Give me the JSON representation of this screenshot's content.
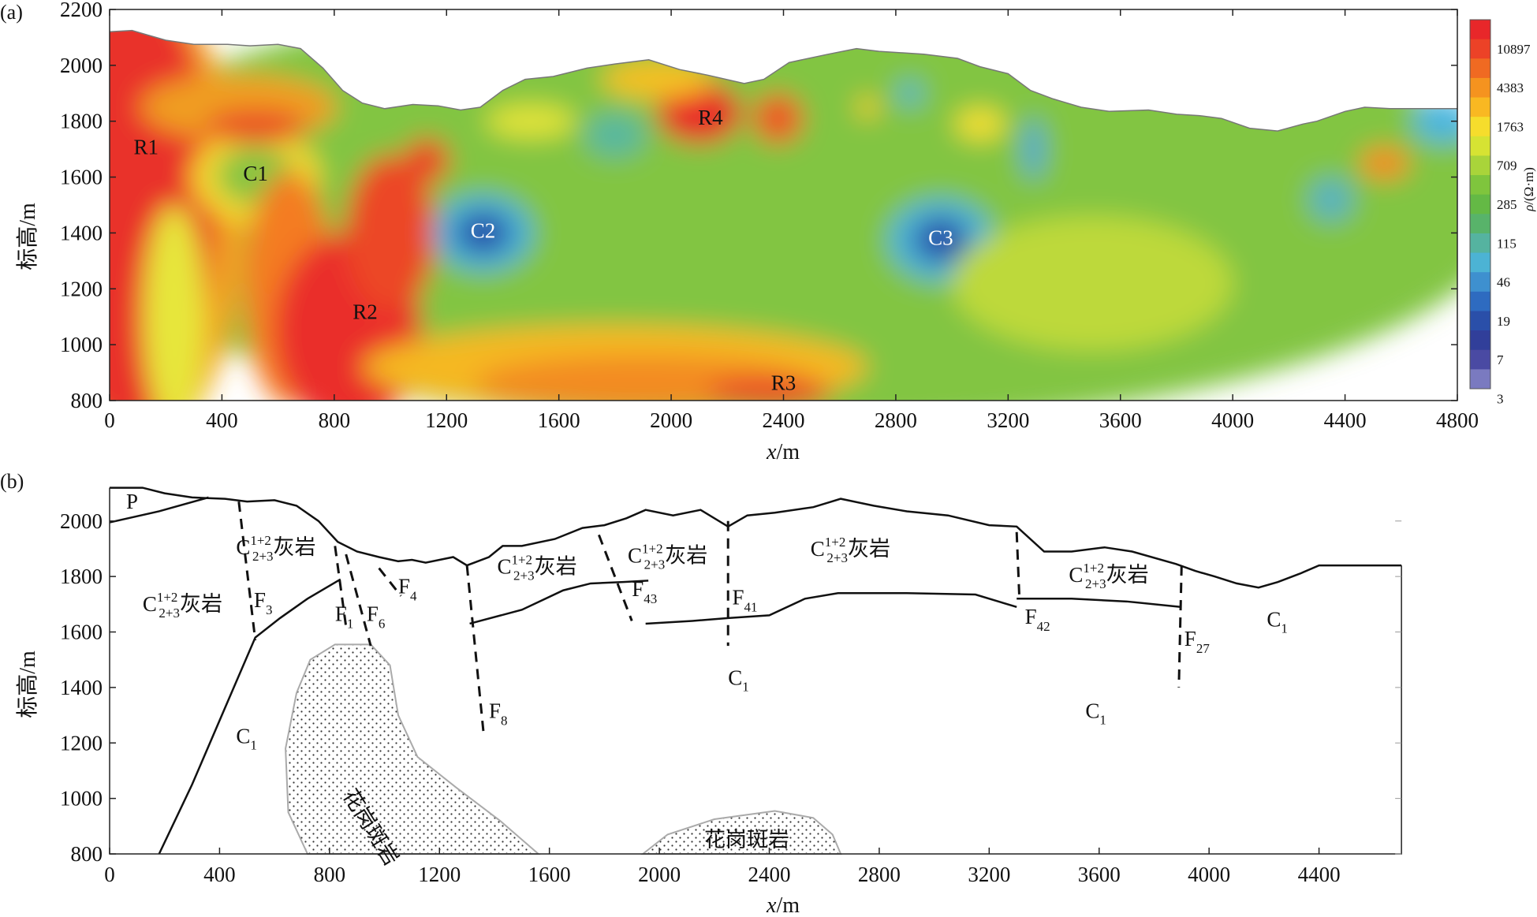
{
  "panel_a": {
    "label": "(a)",
    "x_axis": {
      "title_italic": "x",
      "title_rest": "/m",
      "ticks": [
        "0",
        "400",
        "800",
        "1200",
        "1600",
        "2000",
        "2400",
        "2800",
        "3200",
        "3600",
        "4000",
        "4400",
        "4800"
      ],
      "range": [
        0,
        4800
      ]
    },
    "y_axis": {
      "title": "标高/m",
      "ticks": [
        "800",
        "1000",
        "1200",
        "1400",
        "1600",
        "1800",
        "2000",
        "2200"
      ],
      "range": [
        800,
        2200
      ]
    },
    "colorbar": {
      "title_italic": "ρ",
      "title_rest": "/(Ω·m)",
      "tick_labels": [
        "10897",
        "4383",
        "1763",
        "709",
        "285",
        "115",
        "46",
        "19",
        "7",
        "3"
      ],
      "colors": [
        "#e8272a",
        "#ec4227",
        "#f06a22",
        "#f5931f",
        "#f9b822",
        "#f6dd2c",
        "#d6e333",
        "#a9d43a",
        "#7fc53d",
        "#64b945",
        "#58b36a",
        "#55b3a0",
        "#4cb3d4",
        "#3e90cf",
        "#2e6bc0",
        "#2a4fa9",
        "#313f9a",
        "#4a4aa3",
        "#7a7ac0"
      ],
      "colors_note": "top (high resistivity) to bottom (low resistivity)"
    },
    "anomalies": [
      {
        "id": "R1",
        "x": 130,
        "y": 1700
      },
      {
        "id": "C1",
        "x": 520,
        "y": 1605
      },
      {
        "id": "R2",
        "x": 910,
        "y": 1110
      },
      {
        "id": "C2",
        "x": 1330,
        "y": 1400
      },
      {
        "id": "R4",
        "x": 2140,
        "y": 1805
      },
      {
        "id": "R3",
        "x": 2400,
        "y": 855
      },
      {
        "id": "C3",
        "x": 2960,
        "y": 1375
      }
    ]
  },
  "panel_b": {
    "label": "(b)",
    "x_axis": {
      "title_italic": "x",
      "title_rest": "/m",
      "ticks": [
        "0",
        "400",
        "800",
        "1200",
        "1600",
        "2000",
        "2400",
        "2800",
        "3200",
        "3600",
        "4000",
        "4400"
      ],
      "range": [
        0,
        4800
      ]
    },
    "y_axis": {
      "title": "标高/m",
      "ticks": [
        "800",
        "1000",
        "1200",
        "1400",
        "1600",
        "1800",
        "2000"
      ],
      "range": [
        800,
        2150
      ]
    },
    "unit_P": "P",
    "limestone_main": "C",
    "limestone_sup": "1+2",
    "limestone_sub": "2+3",
    "limestone_word": "灰岩",
    "c1_main": "C",
    "c1_sub": "1",
    "fault_letter": "F",
    "granite_label": "花岗斑岩",
    "faults": [
      {
        "sub": "3",
        "x": 525,
        "y": 1690
      },
      {
        "sub": "1",
        "x": 820,
        "y": 1640
      },
      {
        "sub": "6",
        "x": 935,
        "y": 1640
      },
      {
        "sub": "4",
        "x": 1050,
        "y": 1740
      },
      {
        "sub": "8",
        "x": 1380,
        "y": 1290
      },
      {
        "sub": "43",
        "x": 1900,
        "y": 1730
      },
      {
        "sub": "41",
        "x": 2265,
        "y": 1700
      },
      {
        "sub": "42",
        "x": 3330,
        "y": 1630
      },
      {
        "sub": "27",
        "x": 3910,
        "y": 1550
      }
    ],
    "limestone_labels": [
      {
        "x": 120,
        "y": 1675
      },
      {
        "x": 460,
        "y": 1880
      },
      {
        "x": 1410,
        "y": 1810
      },
      {
        "x": 1885,
        "y": 1850
      },
      {
        "x": 2550,
        "y": 1875
      },
      {
        "x": 3490,
        "y": 1780
      }
    ],
    "c1_labels": [
      {
        "x": 460,
        "y": 1200
      },
      {
        "x": 2250,
        "y": 1410
      },
      {
        "x": 3550,
        "y": 1290
      },
      {
        "x": 4210,
        "y": 1620
      }
    ]
  }
}
